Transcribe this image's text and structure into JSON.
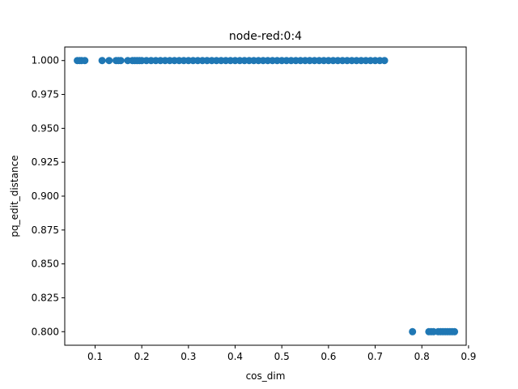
{
  "chart_data": {
    "type": "scatter",
    "title": "node-red:0:4",
    "xlabel": "cos_dim",
    "ylabel": "pq_edit_distance",
    "xlim": [
      0.035,
      0.895
    ],
    "ylim": [
      0.79,
      1.01
    ],
    "x_ticks": [
      0.1,
      0.2,
      0.3,
      0.4,
      0.5,
      0.6,
      0.7,
      0.8,
      0.9
    ],
    "x_tick_labels": [
      "0.1",
      "0.2",
      "0.3",
      "0.4",
      "0.5",
      "0.6",
      "0.7",
      "0.8",
      "0.9"
    ],
    "y_ticks": [
      0.8,
      0.825,
      0.85,
      0.875,
      0.9,
      0.925,
      0.95,
      0.975,
      1.0
    ],
    "y_tick_labels": [
      "0.800",
      "0.825",
      "0.850",
      "0.875",
      "0.900",
      "0.925",
      "0.950",
      "0.975",
      "1.000"
    ],
    "grid": false,
    "marker_color": "#1f77b4",
    "series": [
      {
        "points": [
          [
            0.062,
            1.0
          ],
          [
            0.067,
            1.0
          ],
          [
            0.071,
            1.0
          ],
          [
            0.078,
            1.0
          ],
          [
            0.115,
            1.0
          ],
          [
            0.13,
            1.0
          ],
          [
            0.145,
            1.0
          ],
          [
            0.15,
            1.0
          ],
          [
            0.155,
            1.0
          ],
          [
            0.17,
            1.0
          ],
          [
            0.18,
            1.0
          ],
          [
            0.185,
            1.0
          ],
          [
            0.19,
            1.0
          ],
          [
            0.195,
            1.0
          ],
          [
            0.2,
            1.0
          ],
          [
            0.21,
            1.0
          ],
          [
            0.22,
            1.0
          ],
          [
            0.23,
            1.0
          ],
          [
            0.24,
            1.0
          ],
          [
            0.25,
            1.0
          ],
          [
            0.26,
            1.0
          ],
          [
            0.27,
            1.0
          ],
          [
            0.28,
            1.0
          ],
          [
            0.29,
            1.0
          ],
          [
            0.3,
            1.0
          ],
          [
            0.31,
            1.0
          ],
          [
            0.32,
            1.0
          ],
          [
            0.33,
            1.0
          ],
          [
            0.34,
            1.0
          ],
          [
            0.35,
            1.0
          ],
          [
            0.36,
            1.0
          ],
          [
            0.37,
            1.0
          ],
          [
            0.38,
            1.0
          ],
          [
            0.39,
            1.0
          ],
          [
            0.4,
            1.0
          ],
          [
            0.41,
            1.0
          ],
          [
            0.42,
            1.0
          ],
          [
            0.43,
            1.0
          ],
          [
            0.44,
            1.0
          ],
          [
            0.45,
            1.0
          ],
          [
            0.46,
            1.0
          ],
          [
            0.47,
            1.0
          ],
          [
            0.48,
            1.0
          ],
          [
            0.49,
            1.0
          ],
          [
            0.5,
            1.0
          ],
          [
            0.51,
            1.0
          ],
          [
            0.52,
            1.0
          ],
          [
            0.53,
            1.0
          ],
          [
            0.54,
            1.0
          ],
          [
            0.55,
            1.0
          ],
          [
            0.56,
            1.0
          ],
          [
            0.57,
            1.0
          ],
          [
            0.58,
            1.0
          ],
          [
            0.59,
            1.0
          ],
          [
            0.6,
            1.0
          ],
          [
            0.61,
            1.0
          ],
          [
            0.62,
            1.0
          ],
          [
            0.63,
            1.0
          ],
          [
            0.64,
            1.0
          ],
          [
            0.65,
            1.0
          ],
          [
            0.66,
            1.0
          ],
          [
            0.67,
            1.0
          ],
          [
            0.68,
            1.0
          ],
          [
            0.69,
            1.0
          ],
          [
            0.7,
            1.0
          ],
          [
            0.71,
            1.0
          ],
          [
            0.72,
            1.0
          ],
          [
            0.78,
            0.8
          ],
          [
            0.815,
            0.8
          ],
          [
            0.82,
            0.8
          ],
          [
            0.825,
            0.8
          ],
          [
            0.835,
            0.8
          ],
          [
            0.84,
            0.8
          ],
          [
            0.845,
            0.8
          ],
          [
            0.85,
            0.8
          ],
          [
            0.855,
            0.8
          ],
          [
            0.86,
            0.8
          ],
          [
            0.865,
            0.8
          ],
          [
            0.87,
            0.8
          ]
        ]
      }
    ]
  }
}
